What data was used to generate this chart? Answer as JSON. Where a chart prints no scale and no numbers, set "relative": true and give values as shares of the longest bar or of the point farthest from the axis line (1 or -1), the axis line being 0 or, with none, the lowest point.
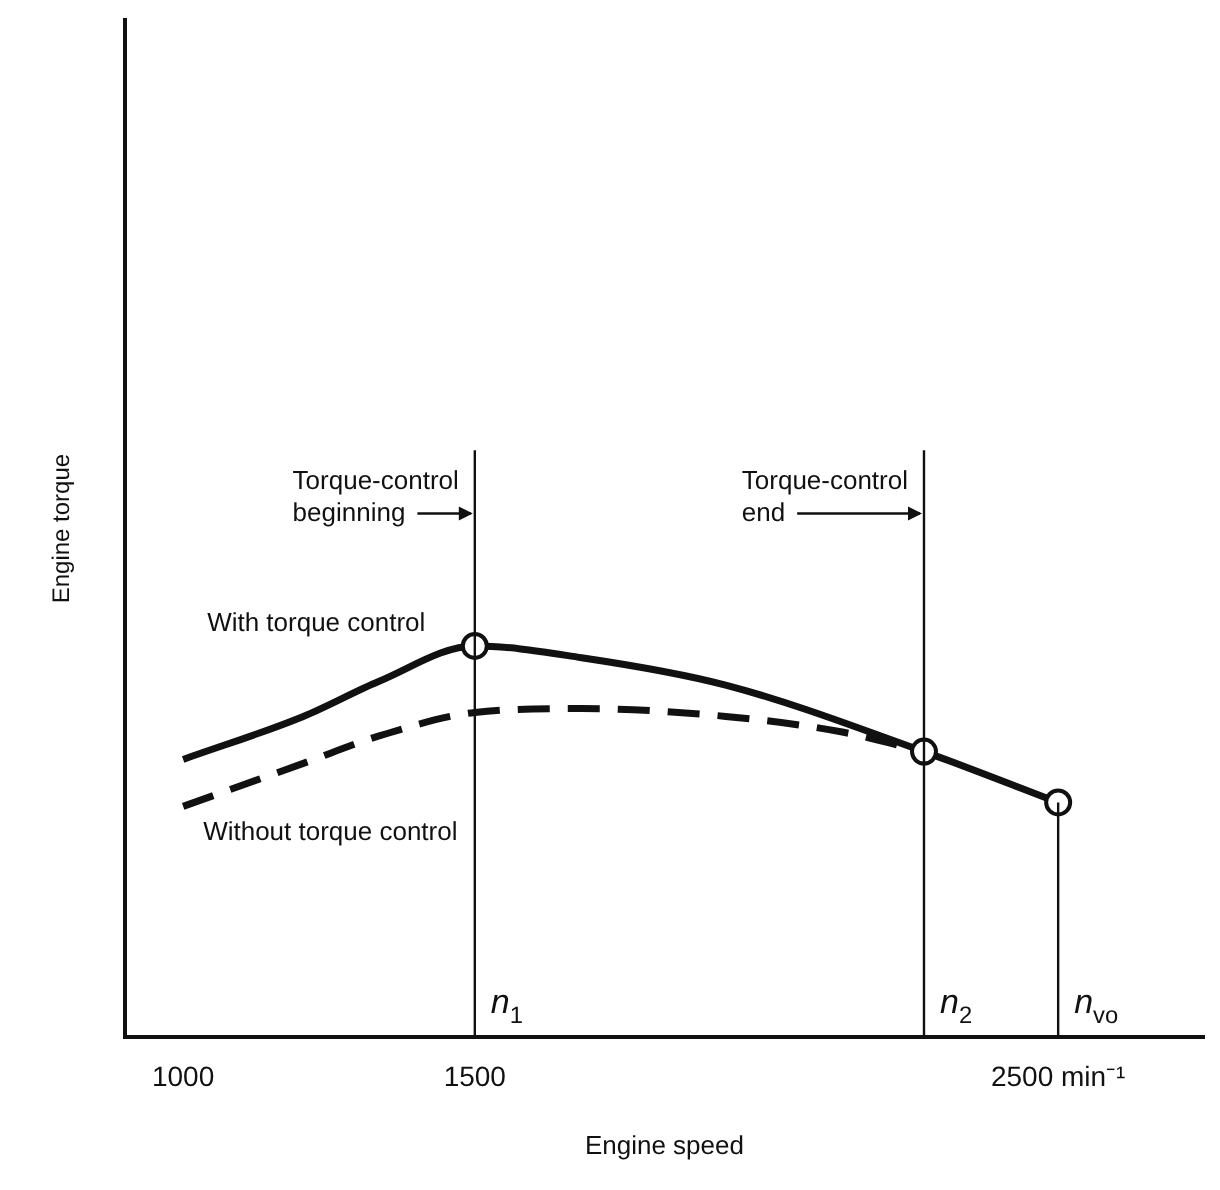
{
  "chart_data": {
    "type": "line",
    "xlabel": "Engine speed",
    "ylabel": "Engine torque",
    "relative": true,
    "xlim": [
      900,
      2750
    ],
    "xticks": [
      1000,
      1500,
      {
        "value": 2500,
        "label": "2500 min⁻¹"
      }
    ],
    "grid": false,
    "legend": false,
    "series": [
      {
        "name": "With torque control",
        "color": "#111111",
        "line_style": "solid",
        "marker": "none",
        "x": [
          1000,
          1206,
          1336,
          1500,
          1683,
          1930,
          2270,
          2500
        ],
        "values": [
          0.71,
          0.82,
          0.91,
          1,
          0.97,
          0.9,
          0.73,
          0.6
        ]
      },
      {
        "name": "Without torque control",
        "color": "#111111",
        "line_style": "dashed",
        "marker": "none",
        "x": [
          1000,
          1206,
          1336,
          1500,
          1683,
          1930,
          2130,
          2270
        ],
        "values": [
          0.59,
          0.7,
          0.77,
          0.83,
          0.84,
          0.82,
          0.78,
          0.73
        ]
      },
      {
        "type": "scatter",
        "color": "#111111",
        "marker": "circle",
        "x": [
          1500,
          2270,
          2500
        ],
        "values": [
          1,
          0.73,
          0.6
        ]
      }
    ],
    "ref_lines": [
      {
        "axis": "x",
        "value": 1500,
        "label": "n$_{1}$"
      },
      {
        "axis": "x",
        "value": 2270,
        "label": "n$_{2}$"
      },
      {
        "axis": "x",
        "value": 2500,
        "label": "n$_{vo}$"
      }
    ],
    "annotations": [
      {
        "text": "Torque-control beginning",
        "x": 1500,
        "y": 1.4
      },
      {
        "text": "Torque-control end",
        "x": 2270,
        "y": 1.4
      }
    ]
  }
}
